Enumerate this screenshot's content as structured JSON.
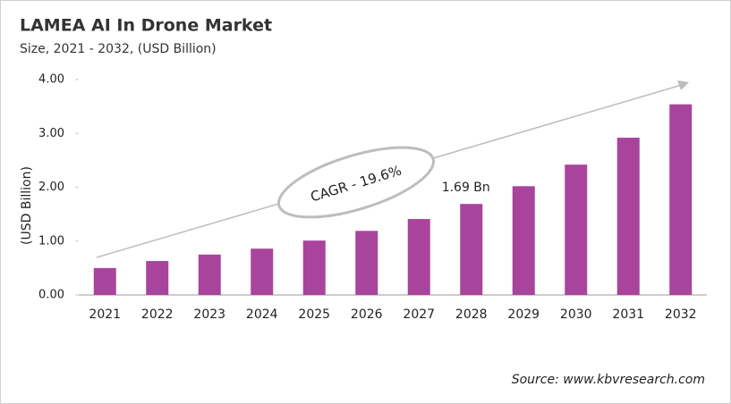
{
  "chart_data": {
    "type": "bar",
    "title": "LAMEA AI In Drone Market",
    "subtitle": "Size, 2021 - 2032, (USD Billion)",
    "y_label": "(USD Billion)",
    "categories": [
      "2021",
      "2022",
      "2023",
      "2024",
      "2025",
      "2026",
      "2027",
      "2028",
      "2029",
      "2030",
      "2031",
      "2032"
    ],
    "values": [
      0.5,
      0.63,
      0.75,
      0.86,
      1.01,
      1.19,
      1.41,
      1.69,
      2.02,
      2.42,
      2.92,
      3.54
    ],
    "value_labels": [
      null,
      null,
      null,
      null,
      null,
      null,
      null,
      "1.69 Bn",
      null,
      null,
      null,
      null
    ],
    "color": "#a9449c",
    "ylim": [
      0,
      4
    ],
    "yticks": [
      {
        "value": 0,
        "label": "0.00"
      },
      {
        "value": 1,
        "label": "1.00"
      },
      {
        "value": 2,
        "label": "2.00"
      },
      {
        "value": 3,
        "label": "3.00"
      },
      {
        "value": 4,
        "label": "4.00"
      }
    ],
    "annotation": "CAGR - 19.6%",
    "source": "Source: www.kbvresearch.com"
  }
}
